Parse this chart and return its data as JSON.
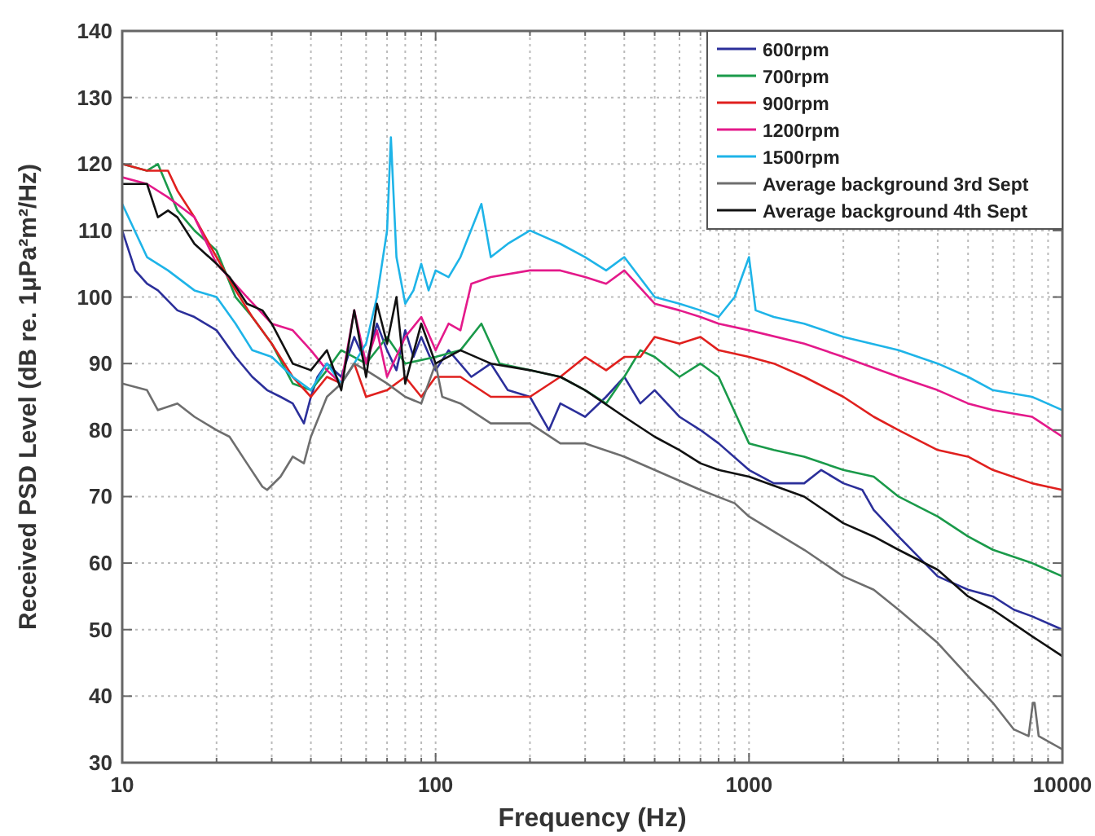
{
  "chart_data": {
    "type": "line",
    "xlabel": "Frequency (Hz)",
    "ylabel": "Received PSD Level (dB re. 1μPa²m²/Hz)",
    "log": "x",
    "grid": true,
    "legend": "top right",
    "line_style": "solid",
    "xlim": [
      10,
      10000
    ],
    "ylim": [
      30,
      140
    ],
    "xticks": [
      10,
      {
        "value": 20,
        "label": null
      },
      {
        "value": 30,
        "label": null
      },
      {
        "value": 40,
        "label": null
      },
      {
        "value": 50,
        "label": null
      },
      {
        "value": 60,
        "label": null
      },
      {
        "value": 70,
        "label": null
      },
      {
        "value": 80,
        "label": null
      },
      {
        "value": 90,
        "label": null
      },
      100,
      {
        "value": 200,
        "label": null
      },
      {
        "value": 300,
        "label": null
      },
      {
        "value": 400,
        "label": null
      },
      {
        "value": 500,
        "label": null
      },
      {
        "value": 600,
        "label": null
      },
      {
        "value": 700,
        "label": null
      },
      {
        "value": 800,
        "label": null
      },
      {
        "value": 900,
        "label": null
      },
      1000,
      {
        "value": 2000,
        "label": null
      },
      {
        "value": 3000,
        "label": null
      },
      {
        "value": 4000,
        "label": null
      },
      {
        "value": 5000,
        "label": null
      },
      {
        "value": 6000,
        "label": null
      },
      {
        "value": 7000,
        "label": null
      },
      {
        "value": 8000,
        "label": null
      },
      {
        "value": 9000,
        "label": null
      },
      10000
    ],
    "yticks": [
      30,
      40,
      50,
      60,
      70,
      80,
      90,
      100,
      110,
      120,
      130,
      140
    ],
    "series": [
      {
        "name": "600rpm",
        "color": "#2b2f9a",
        "x": [
          10,
          11,
          12,
          13,
          15,
          17,
          20,
          23,
          26,
          29,
          32,
          35,
          38,
          40,
          42,
          45,
          50,
          55,
          60,
          65,
          70,
          75,
          80,
          85,
          90,
          100,
          110,
          130,
          150,
          170,
          200,
          230,
          250,
          300,
          350,
          400,
          450,
          500,
          600,
          700,
          800,
          1000,
          1200,
          1500,
          1700,
          2000,
          2300,
          2500,
          3000,
          4000,
          5000,
          6000,
          7000,
          8000,
          10000
        ],
        "values": [
          110,
          104,
          102,
          101,
          98,
          97,
          95,
          91,
          88,
          86,
          85,
          84,
          81,
          85,
          88,
          90,
          88,
          94,
          90,
          96,
          92,
          89,
          95,
          91,
          94,
          89,
          92,
          88,
          90,
          86,
          85,
          80,
          84,
          82,
          85,
          88,
          84,
          86,
          82,
          80,
          78,
          74,
          72,
          72,
          74,
          72,
          71,
          68,
          64,
          58,
          56,
          55,
          53,
          52,
          50
        ]
      },
      {
        "name": "700rpm",
        "color": "#1a9a4a",
        "x": [
          10,
          12,
          13,
          15,
          17,
          20,
          23,
          26,
          30,
          35,
          40,
          45,
          50,
          60,
          70,
          80,
          100,
          120,
          140,
          160,
          200,
          250,
          300,
          350,
          400,
          450,
          500,
          600,
          700,
          800,
          1000,
          1200,
          1500,
          2000,
          2500,
          3000,
          4000,
          5000,
          6000,
          8000,
          10000
        ],
        "values": [
          120,
          119,
          120,
          113,
          110,
          107,
          100,
          97,
          93,
          87,
          86,
          89,
          92,
          90,
          94,
          90,
          91,
          92,
          96,
          90,
          89,
          88,
          86,
          84,
          88,
          92,
          91,
          88,
          90,
          88,
          78,
          77,
          76,
          74,
          73,
          70,
          67,
          64,
          62,
          60,
          58
        ]
      },
      {
        "name": "900rpm",
        "color": "#e0201e",
        "x": [
          10,
          12,
          14,
          15,
          17,
          20,
          23,
          26,
          30,
          35,
          40,
          45,
          50,
          55,
          60,
          70,
          80,
          90,
          100,
          120,
          150,
          200,
          250,
          300,
          350,
          400,
          450,
          500,
          600,
          700,
          800,
          1000,
          1200,
          1500,
          2000,
          2500,
          3000,
          4000,
          5000,
          6000,
          8000,
          10000
        ],
        "values": [
          120,
          119,
          119,
          116,
          112,
          106,
          101,
          97,
          93,
          88,
          85,
          88,
          87,
          90,
          85,
          86,
          88,
          85,
          88,
          88,
          85,
          85,
          88,
          91,
          89,
          91,
          91,
          94,
          93,
          94,
          92,
          91,
          90,
          88,
          85,
          82,
          80,
          77,
          76,
          74,
          72,
          71
        ]
      },
      {
        "name": "1200rpm",
        "color": "#e4198a",
        "x": [
          10,
          12,
          14,
          17,
          20,
          25,
          30,
          35,
          40,
          45,
          50,
          55,
          60,
          65,
          70,
          80,
          90,
          100,
          110,
          120,
          130,
          150,
          200,
          250,
          300,
          350,
          400,
          500,
          600,
          700,
          800,
          1000,
          1500,
          2000,
          3000,
          4000,
          5000,
          6000,
          8000,
          10000
        ],
        "values": [
          118,
          117,
          115,
          112,
          105,
          100,
          96,
          95,
          92,
          89,
          87,
          98,
          90,
          95,
          88,
          94,
          97,
          92,
          96,
          95,
          102,
          103,
          104,
          104,
          103,
          102,
          104,
          99,
          98,
          97,
          96,
          95,
          93,
          91,
          88,
          86,
          84,
          83,
          82,
          79
        ]
      },
      {
        "name": "1500rpm",
        "color": "#1eb4e8",
        "x": [
          10,
          12,
          14,
          17,
          20,
          23,
          26,
          30,
          35,
          40,
          45,
          50,
          55,
          60,
          65,
          70,
          72,
          75,
          80,
          85,
          90,
          95,
          100,
          110,
          120,
          140,
          150,
          170,
          200,
          250,
          300,
          350,
          400,
          500,
          600,
          700,
          800,
          900,
          1000,
          1050,
          1200,
          1500,
          2000,
          3000,
          4000,
          5000,
          6000,
          8000,
          10000
        ],
        "values": [
          114,
          106,
          104,
          101,
          100,
          96,
          92,
          91,
          88,
          86,
          90,
          87,
          90,
          93,
          100,
          110,
          124,
          106,
          99,
          101,
          105,
          101,
          104,
          103,
          106,
          114,
          106,
          108,
          110,
          108,
          106,
          104,
          106,
          100,
          99,
          98,
          97,
          100,
          106,
          98,
          97,
          96,
          94,
          92,
          90,
          88,
          86,
          85,
          83
        ]
      },
      {
        "name": "Average background 3rd Sept",
        "color": "#6e6e6e",
        "x": [
          10,
          12,
          13,
          15,
          17,
          20,
          22,
          25,
          28,
          29,
          32,
          35,
          38,
          40,
          45,
          50,
          55,
          60,
          70,
          80,
          90,
          100,
          105,
          120,
          150,
          200,
          250,
          300,
          400,
          500,
          700,
          900,
          1000,
          1500,
          2000,
          2500,
          3000,
          4000,
          5000,
          6000,
          7000,
          7800,
          8050,
          8150,
          8400,
          10000
        ],
        "values": [
          87,
          86,
          83,
          84,
          82,
          80,
          79,
          75,
          71.5,
          71,
          73,
          76,
          75,
          79,
          85,
          87,
          90,
          89,
          87,
          85,
          84,
          90,
          85,
          84,
          81,
          81,
          78,
          78,
          76,
          74,
          71,
          69,
          67,
          62,
          58,
          56,
          53,
          48,
          43,
          39,
          35,
          34,
          39,
          39,
          34,
          32
        ]
      },
      {
        "name": "Average background 4th Sept",
        "color": "#111111",
        "x": [
          10,
          12,
          13,
          14,
          15,
          17,
          20,
          22,
          25,
          28,
          30,
          35,
          40,
          45,
          50,
          55,
          60,
          65,
          70,
          75,
          80,
          90,
          100,
          120,
          150,
          200,
          250,
          300,
          400,
          500,
          600,
          700,
          800,
          1000,
          1500,
          2000,
          2500,
          3000,
          4000,
          5000,
          6000,
          8000,
          10000
        ],
        "values": [
          117,
          117,
          112,
          113,
          112,
          108,
          105,
          103,
          99,
          98,
          96,
          90,
          89,
          92,
          86,
          98,
          88,
          99,
          93,
          100,
          87,
          96,
          90,
          92,
          90,
          89,
          88,
          86,
          82,
          79,
          77,
          75,
          74,
          73,
          70,
          66,
          64,
          62,
          59,
          55,
          53,
          49,
          46
        ]
      }
    ]
  }
}
